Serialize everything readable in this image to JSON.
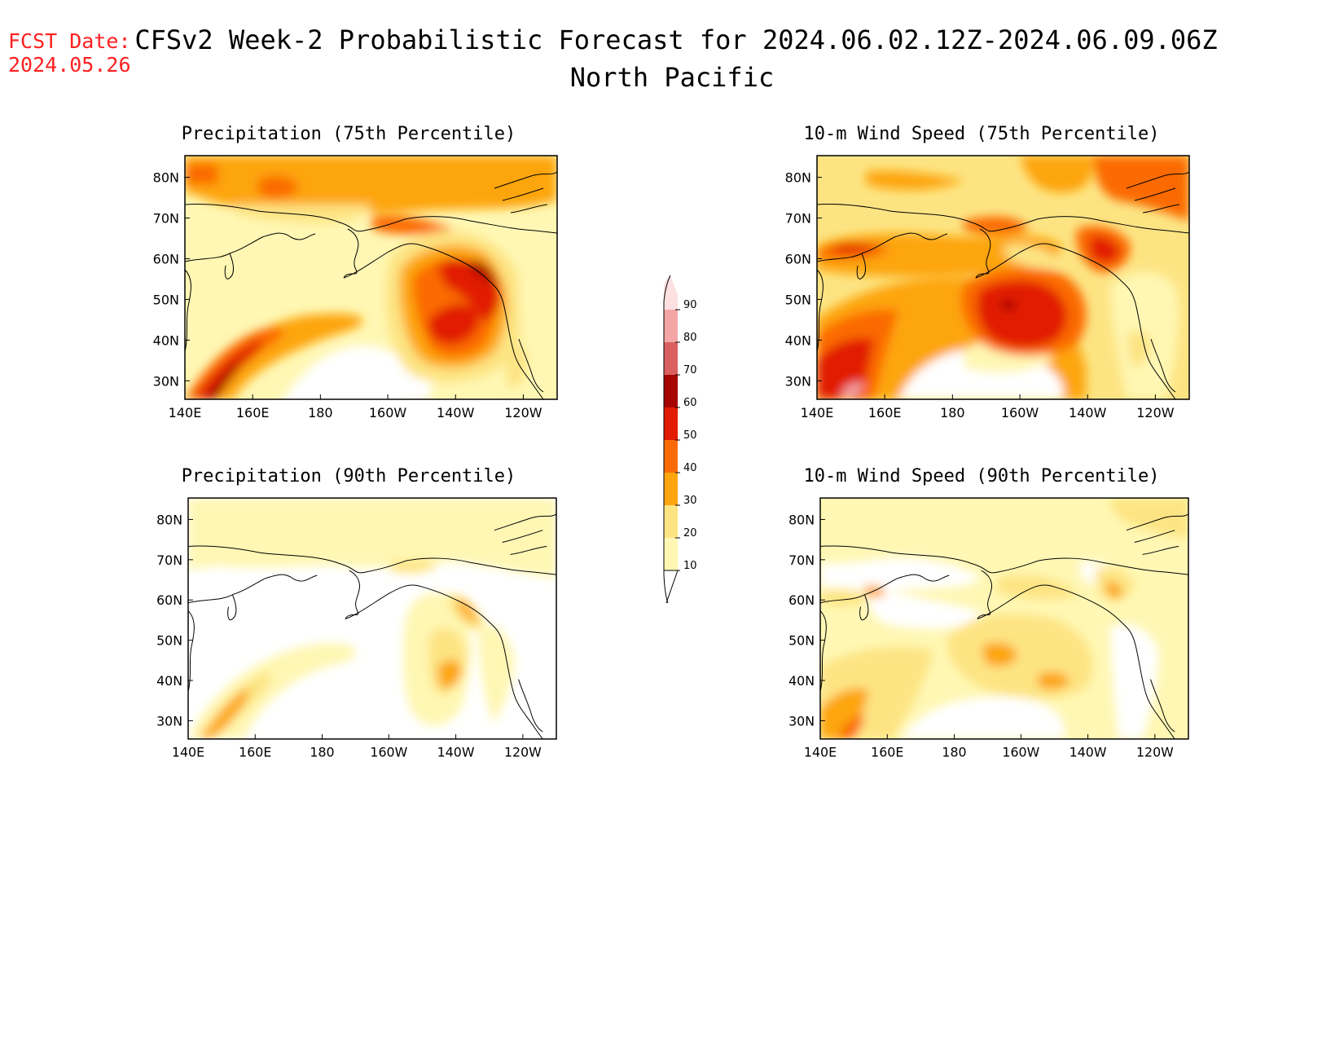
{
  "fcst_date": {
    "label": "FCST Date:",
    "value": "2024.05.26"
  },
  "title": "CFSv2 Week-2 Probabilistic Forecast for 2024.06.02.12Z-2024.06.09.06Z",
  "region": "North Pacific",
  "axes": {
    "lon_ticks": [
      "140E",
      "160E",
      "180",
      "160W",
      "140W",
      "120W"
    ],
    "lat_ticks": [
      "80N",
      "70N",
      "60N",
      "50N",
      "40N",
      "30N"
    ]
  },
  "colorbar": {
    "levels": [
      "10",
      "20",
      "30",
      "40",
      "50",
      "60",
      "70",
      "80",
      "90"
    ],
    "colors": [
      "#fff7b3",
      "#fde483",
      "#fda50f",
      "#fb6b05",
      "#e11c02",
      "#a70303",
      "#da6060",
      "#f4a5a5",
      "#fde0e0"
    ]
  },
  "panels": [
    {
      "title": "Precipitation (75th Percentile)"
    },
    {
      "title": "10-m Wind Speed (75th Percentile)"
    },
    {
      "title": "Precipitation (90th Percentile)"
    },
    {
      "title": "10-m Wind Speed (90th Percentile)"
    }
  ]
}
